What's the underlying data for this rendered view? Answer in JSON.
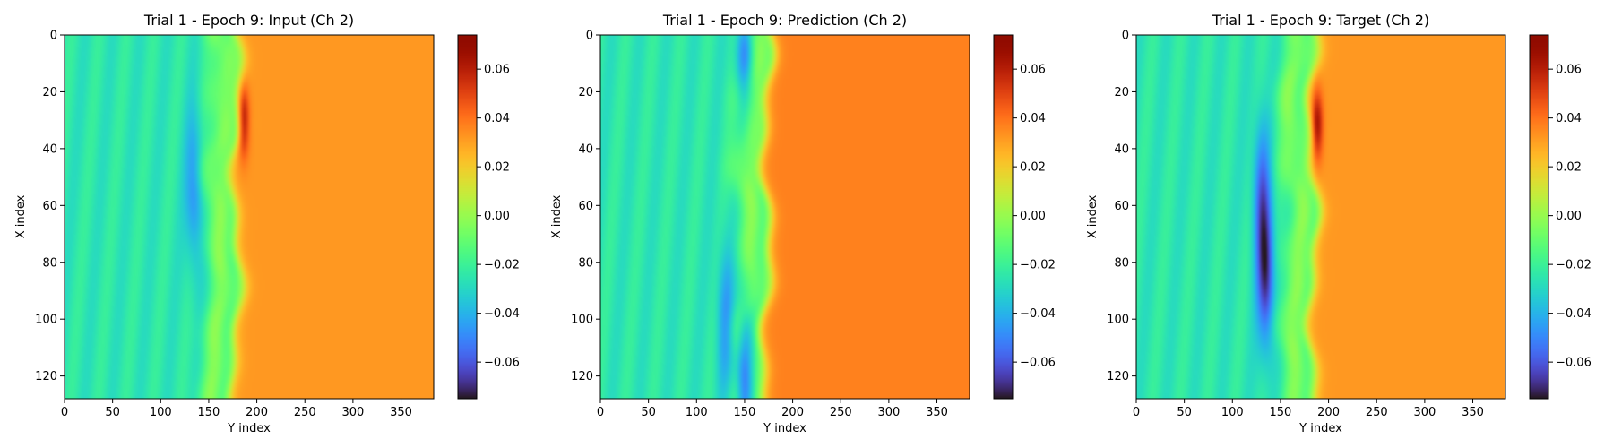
{
  "chart_data": [
    {
      "type": "heatmap",
      "title": "Trial 1 - Epoch 9: Input (Ch 2)",
      "xlabel": "Y index",
      "ylabel": "X index",
      "xlim": [
        0,
        384
      ],
      "ylim": [
        128,
        0
      ],
      "xticks": [
        0,
        50,
        100,
        150,
        200,
        250,
        300,
        350
      ],
      "yticks": [
        0,
        20,
        40,
        60,
        80,
        100,
        120
      ],
      "colorbar": {
        "range": [
          -0.075,
          0.074
        ],
        "ticks": [
          "0.06",
          "0.04",
          "0.02",
          "0.00",
          "−0.02",
          "−0.04",
          "−0.06"
        ],
        "tick_values": [
          0.06,
          0.04,
          0.02,
          0.0,
          -0.02,
          -0.04,
          -0.06
        ],
        "colormap": "turbo"
      },
      "front_y": 178,
      "left_level": -0.025,
      "right_level": 0.032,
      "features": [
        {
          "kind": "low",
          "y": 135,
          "x": 55,
          "value": -0.05
        },
        {
          "kind": "high",
          "y": 186,
          "x": 30,
          "value": 0.068
        }
      ]
    },
    {
      "type": "heatmap",
      "title": "Trial 1 - Epoch 9: Prediction (Ch 2)",
      "xlabel": "Y index",
      "ylabel": "X index",
      "xlim": [
        0,
        384
      ],
      "ylim": [
        128,
        0
      ],
      "xticks": [
        0,
        50,
        100,
        150,
        200,
        250,
        300,
        350
      ],
      "yticks": [
        0,
        20,
        40,
        60,
        80,
        100,
        120
      ],
      "colorbar": {
        "range": [
          -0.075,
          0.074
        ],
        "ticks": [
          "0.06",
          "0.04",
          "0.02",
          "0.00",
          "−0.02",
          "−0.04",
          "−0.06"
        ],
        "tick_values": [
          0.06,
          0.04,
          0.02,
          0.0,
          -0.02,
          -0.04,
          -0.06
        ],
        "colormap": "turbo"
      },
      "front_y": 172,
      "left_level": -0.025,
      "right_level": 0.037,
      "features": [
        {
          "kind": "low",
          "y": 150,
          "x": 5,
          "value": -0.055
        },
        {
          "kind": "low",
          "y": 150,
          "x": 120,
          "value": -0.068
        },
        {
          "kind": "low",
          "y": 130,
          "x": 100,
          "value": -0.045
        }
      ]
    },
    {
      "type": "heatmap",
      "title": "Trial 1 - Epoch 9: Target (Ch 2)",
      "xlabel": "Y index",
      "ylabel": "X index",
      "xlim": [
        0,
        384
      ],
      "ylim": [
        128,
        0
      ],
      "xticks": [
        0,
        50,
        100,
        150,
        200,
        250,
        300,
        350
      ],
      "yticks": [
        0,
        20,
        40,
        60,
        80,
        100,
        120
      ],
      "colorbar": {
        "range": [
          -0.075,
          0.074
        ],
        "ticks": [
          "0.06",
          "0.04",
          "0.02",
          "0.00",
          "−0.02",
          "−0.04",
          "−0.06"
        ],
        "tick_values": [
          0.06,
          0.04,
          0.02,
          0.0,
          -0.02,
          -0.04,
          -0.06
        ],
        "colormap": "turbo"
      },
      "front_y": 183,
      "left_level": -0.025,
      "right_level": 0.032,
      "features": [
        {
          "kind": "low",
          "y": 130,
          "x": 55,
          "value": -0.052
        },
        {
          "kind": "low",
          "y": 135,
          "x": 85,
          "value": -0.068
        },
        {
          "kind": "high",
          "y": 188,
          "x": 32,
          "value": 0.068
        }
      ]
    }
  ]
}
